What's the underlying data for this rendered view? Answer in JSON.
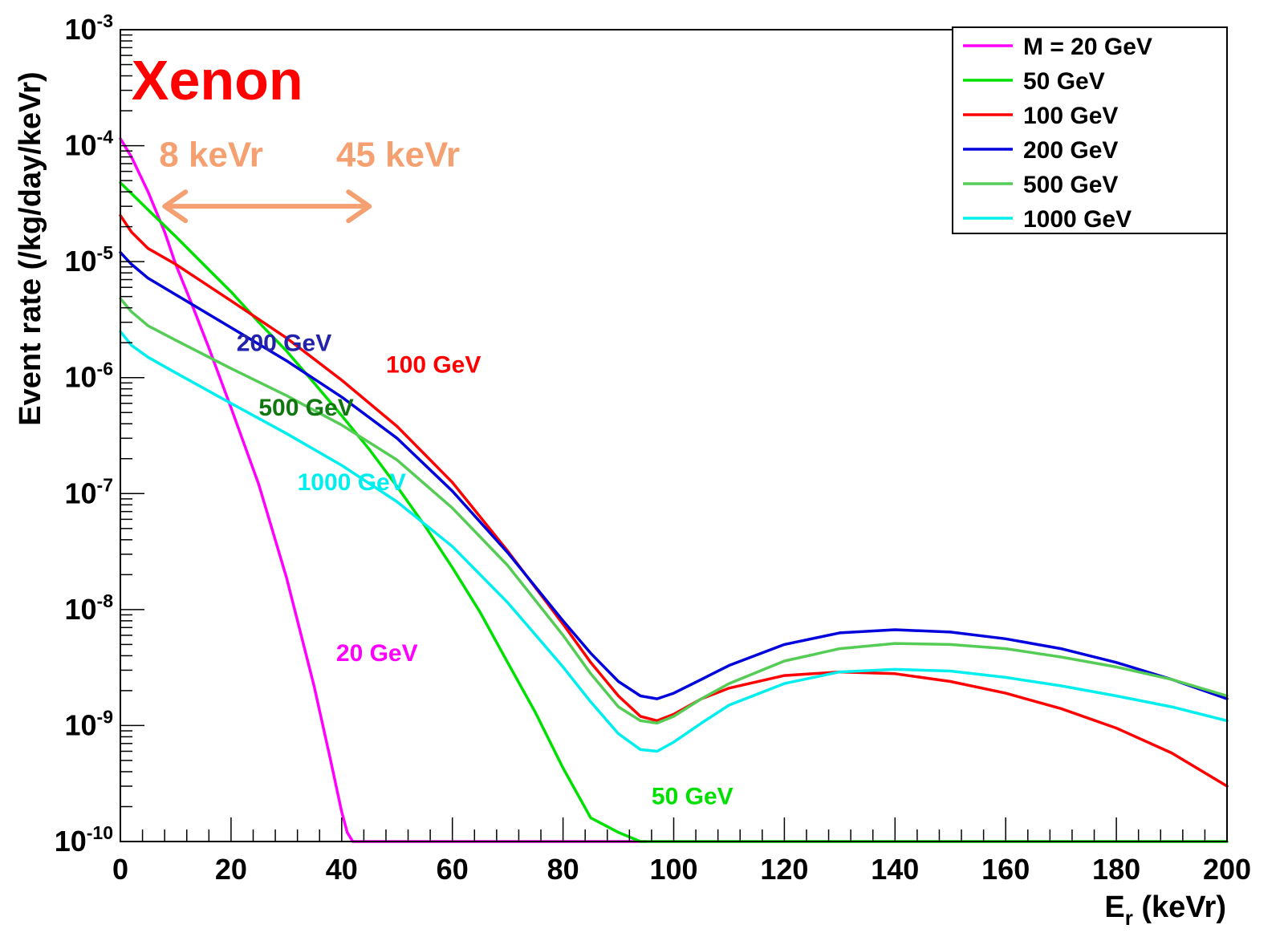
{
  "chart_data": {
    "type": "line",
    "title": "",
    "xlabel": {
      "main": "E",
      "sub": "r",
      "rest": " (keVr)"
    },
    "ylabel": "Event rate (/kg/day/keVr)",
    "xlim": [
      0,
      200
    ],
    "ylim": [
      1e-10,
      0.001
    ],
    "yscale": "log",
    "x_ticks": [
      "0",
      "20",
      "40",
      "60",
      "80",
      "100",
      "120",
      "140",
      "160",
      "180",
      "200"
    ],
    "y_ticks": [
      {
        "base": "10",
        "exp": "-3",
        "value": 0.001
      },
      {
        "base": "10",
        "exp": "-4",
        "value": 0.0001
      },
      {
        "base": "10",
        "exp": "-5",
        "value": 1e-05
      },
      {
        "base": "10",
        "exp": "-6",
        "value": 1e-06
      },
      {
        "base": "10",
        "exp": "-7",
        "value": 1e-07
      },
      {
        "base": "10",
        "exp": "-8",
        "value": 1e-08
      },
      {
        "base": "10",
        "exp": "-9",
        "value": 1e-09
      },
      {
        "base": "10",
        "exp": "-10",
        "value": 1e-10
      }
    ],
    "grid": false,
    "legend_position": "top-right",
    "series": [
      {
        "name": "M = 20 GeV",
        "color": "#ff00ff",
        "x": [
          0,
          2,
          5,
          8,
          10,
          13,
          16,
          20,
          25,
          30,
          35,
          38,
          40,
          41,
          42,
          95
        ],
        "y": [
          0.000115,
          8e-05,
          4e-05,
          1.8e-05,
          9.5e-06,
          4.2e-06,
          1.8e-06,
          5.5e-07,
          1.2e-07,
          1.9e-08,
          2.2e-09,
          5e-10,
          1.8e-10,
          1.2e-10,
          1e-10,
          1e-10
        ]
      },
      {
        "name": "50 GeV",
        "color": "#00e000",
        "x": [
          0,
          5,
          10,
          15,
          20,
          25,
          30,
          35,
          40,
          45,
          50,
          55,
          60,
          65,
          70,
          75,
          80,
          85,
          90,
          94,
          95,
          200
        ],
        "y": [
          4.8e-05,
          2.8e-05,
          1.65e-05,
          9.5e-06,
          5.5e-06,
          3e-06,
          1.7e-06,
          9e-07,
          4.7e-07,
          2.4e-07,
          1.15e-07,
          5.3e-08,
          2.3e-08,
          9.5e-09,
          3.5e-09,
          1.3e-09,
          4.3e-10,
          1.6e-10,
          1.2e-10,
          1e-10,
          1e-10,
          1e-10
        ]
      },
      {
        "name": "100 GeV",
        "color": "#ff0000",
        "x": [
          0,
          2,
          5,
          10,
          20,
          30,
          40,
          50,
          60,
          70,
          80,
          85,
          90,
          94,
          97,
          100,
          105,
          110,
          120,
          130,
          140,
          150,
          160,
          170,
          180,
          190,
          200
        ],
        "y": [
          2.5e-05,
          1.8e-05,
          1.3e-05,
          9.5e-06,
          4.6e-06,
          2.2e-06,
          9.5e-07,
          3.8e-07,
          1.25e-07,
          3.2e-08,
          7.5e-09,
          3.5e-09,
          1.8e-09,
          1.2e-09,
          1.1e-09,
          1.25e-09,
          1.7e-09,
          2.1e-09,
          2.7e-09,
          2.9e-09,
          2.8e-09,
          2.4e-09,
          1.9e-09,
          1.4e-09,
          9.5e-10,
          5.8e-10,
          3e-10
        ]
      },
      {
        "name": "200 GeV",
        "color": "#0000dd",
        "x": [
          0,
          2,
          5,
          10,
          20,
          30,
          40,
          50,
          60,
          70,
          80,
          85,
          90,
          94,
          97,
          100,
          105,
          110,
          120,
          130,
          140,
          150,
          160,
          170,
          180,
          190,
          200
        ],
        "y": [
          1.2e-05,
          9.5e-06,
          7.2e-06,
          5.2e-06,
          2.7e-06,
          1.4e-06,
          6.8e-07,
          3e-07,
          1.05e-07,
          3.1e-08,
          8e-09,
          4.2e-09,
          2.4e-09,
          1.8e-09,
          1.7e-09,
          1.9e-09,
          2.5e-09,
          3.3e-09,
          5e-09,
          6.3e-09,
          6.7e-09,
          6.4e-09,
          5.6e-09,
          4.6e-09,
          3.5e-09,
          2.5e-09,
          1.7e-09
        ]
      },
      {
        "name": "500 GeV",
        "color": "#55cc55",
        "x": [
          0,
          2,
          5,
          10,
          20,
          30,
          40,
          50,
          60,
          70,
          80,
          85,
          90,
          94,
          97,
          100,
          105,
          110,
          120,
          130,
          140,
          150,
          160,
          170,
          180,
          190,
          200
        ],
        "y": [
          4.8e-06,
          3.7e-06,
          2.8e-06,
          2.1e-06,
          1.2e-06,
          7e-07,
          3.9e-07,
          1.95e-07,
          7.5e-08,
          2.4e-08,
          6e-09,
          2.8e-09,
          1.45e-09,
          1.1e-09,
          1.05e-09,
          1.2e-09,
          1.7e-09,
          2.3e-09,
          3.6e-09,
          4.6e-09,
          5.1e-09,
          5e-09,
          4.6e-09,
          3.9e-09,
          3.2e-09,
          2.5e-09,
          1.8e-09
        ]
      },
      {
        "name": "1000 GeV",
        "color": "#00eeee",
        "x": [
          0,
          2,
          5,
          10,
          20,
          30,
          40,
          50,
          60,
          70,
          80,
          85,
          90,
          94,
          97,
          100,
          105,
          110,
          120,
          130,
          140,
          150,
          160,
          170,
          180,
          190,
          200
        ],
        "y": [
          2.5e-06,
          1.9e-06,
          1.5e-06,
          1.1e-06,
          6e-07,
          3.3e-07,
          1.75e-07,
          8.5e-08,
          3.5e-08,
          1.15e-08,
          3.2e-09,
          1.6e-09,
          8.5e-10,
          6.2e-10,
          6e-10,
          7.2e-10,
          1.05e-09,
          1.5e-09,
          2.3e-09,
          2.9e-09,
          3.05e-09,
          2.95e-09,
          2.6e-09,
          2.2e-09,
          1.8e-09,
          1.45e-09,
          1.1e-09
        ]
      }
    ],
    "annotations": [
      {
        "text": "Xenon",
        "color": "#ff0000",
        "x": 2,
        "y": 0.00025,
        "size": "xl"
      },
      {
        "text": "8 keVr",
        "color": "#f5a070",
        "x": 7,
        "y": 6.6e-05,
        "size": "l"
      },
      {
        "text": "45 keVr",
        "color": "#f5a070",
        "x": 39,
        "y": 6.6e-05,
        "size": "l"
      },
      {
        "text": "200 GeV",
        "color": "#2222aa",
        "x": 21,
        "y": 1.7e-06,
        "size": "m"
      },
      {
        "text": "100 GeV",
        "color": "#ff0000",
        "x": 48,
        "y": 1.1e-06,
        "size": "m"
      },
      {
        "text": "500 GeV",
        "color": "#117711",
        "x": 25,
        "y": 4.7e-07,
        "size": "m"
      },
      {
        "text": "1000 GeV",
        "color": "#00eeee",
        "x": 32,
        "y": 1.07e-07,
        "size": "m"
      },
      {
        "text": "20 GeV",
        "color": "#ff00ff",
        "x": 39,
        "y": 3.6e-09,
        "size": "m"
      },
      {
        "text": "50 GeV",
        "color": "#00e000",
        "x": 96,
        "y": 2.1e-10,
        "size": "m"
      }
    ],
    "arrow": {
      "x_start": 8,
      "x_end": 45,
      "y": 3e-05,
      "color": "#f5a070"
    }
  }
}
